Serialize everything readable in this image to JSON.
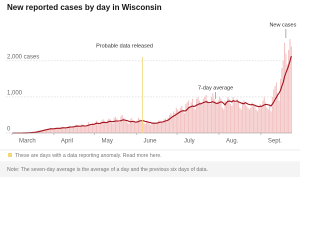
{
  "chart_data": {
    "type": "bar",
    "title": "New reported cases by day in Wisconsin",
    "categories": [
      "March",
      null,
      null,
      null,
      null,
      null,
      null,
      null,
      null,
      null,
      null,
      null,
      null,
      null,
      null,
      null,
      null,
      null,
      null,
      null,
      null,
      null,
      null,
      null,
      null,
      null,
      null,
      null,
      null,
      null,
      null,
      "April",
      null,
      null,
      null,
      null,
      null,
      null,
      null,
      null,
      null,
      null,
      null,
      null,
      null,
      null,
      null,
      null,
      null,
      null,
      null,
      null,
      null,
      null,
      null,
      null,
      null,
      null,
      null,
      null,
      null,
      "May",
      null,
      null,
      null,
      null,
      null,
      null,
      null,
      null,
      null,
      null,
      null,
      null,
      null,
      null,
      null,
      null,
      null,
      null,
      null,
      null,
      null,
      null,
      null,
      null,
      null,
      null,
      null,
      null,
      null,
      null,
      "June",
      null,
      null,
      null,
      null,
      null,
      null,
      null,
      null,
      null,
      null,
      null,
      null,
      null,
      null,
      null,
      null,
      null,
      null,
      null,
      null,
      null,
      null,
      null,
      null,
      null,
      null,
      null,
      null,
      null,
      "July",
      null,
      null,
      null,
      null,
      null,
      null,
      null,
      null,
      null,
      null,
      null,
      null,
      null,
      null,
      null,
      null,
      null,
      null,
      null,
      null,
      null,
      null,
      null,
      null,
      null,
      null,
      null,
      null,
      null,
      null,
      "Aug.",
      null,
      null,
      null,
      null,
      null,
      null,
      null,
      null,
      null,
      null,
      null,
      null,
      null,
      null,
      null,
      null,
      null,
      null,
      null,
      null,
      null,
      null,
      null,
      null,
      null,
      null,
      null,
      null,
      null,
      null,
      "Sept.",
      null,
      null,
      null,
      null,
      null,
      null,
      null,
      null,
      null,
      null,
      null,
      null,
      null,
      null,
      null,
      null,
      null,
      null,
      null,
      null,
      null,
      null
    ],
    "series": [
      {
        "name": "New cases",
        "color": "#f3c3c3",
        "values": [
          0,
          0,
          0,
          0,
          0,
          0,
          1,
          2,
          3,
          5,
          8,
          10,
          12,
          15,
          20,
          25,
          30,
          40,
          50,
          60,
          70,
          80,
          90,
          100,
          110,
          100,
          120,
          130,
          140,
          120,
          100,
          120,
          150,
          130,
          110,
          140,
          160,
          170,
          150,
          130,
          160,
          180,
          200,
          170,
          150,
          180,
          210,
          230,
          200,
          160,
          190,
          250,
          220,
          180,
          170,
          230,
          300,
          250,
          200,
          280,
          260,
          300,
          340,
          250,
          220,
          300,
          350,
          380,
          320,
          280,
          350,
          400,
          380,
          300,
          260,
          420,
          450,
          400,
          350,
          300,
          460,
          500,
          420,
          380,
          350,
          280,
          260,
          380,
          420,
          360,
          300,
          280,
          350,
          420,
          380,
          300,
          350,
          280,
          250,
          320,
          300,
          250,
          220,
          280,
          300,
          260,
          280,
          300,
          350,
          320,
          280,
          300,
          380,
          400,
          350,
          420,
          500,
          550,
          480,
          600,
          550,
          700,
          650,
          600,
          700,
          750,
          650,
          550,
          800,
          850,
          900,
          750,
          850,
          950,
          700,
          650,
          950,
          1000,
          900,
          850,
          800,
          950,
          1000,
          1050,
          900,
          850,
          800,
          1000,
          1100,
          950,
          880,
          820,
          900,
          1000,
          950,
          700,
          650,
          900,
          850,
          1000,
          950,
          800,
          750,
          1000,
          900,
          850,
          950,
          850,
          700,
          650,
          850,
          900,
          800,
          750,
          700,
          650,
          700,
          850,
          800,
          750,
          650,
          600,
          700,
          800,
          750,
          900,
          1000,
          850,
          700,
          650,
          800,
          600,
          1000,
          1200,
          1300,
          1400,
          1100,
          900,
          1500,
          1800,
          2000,
          2500,
          2200,
          1900,
          2300,
          2600,
          2400
        ]
      },
      {
        "name": "7-day average",
        "color": "#a3121c",
        "values": [
          0,
          0,
          0,
          0,
          0,
          0,
          0,
          0,
          1,
          2,
          3,
          5,
          7,
          9,
          12,
          15,
          18,
          23,
          29,
          36,
          44,
          53,
          63,
          73,
          82,
          90,
          99,
          107,
          115,
          117,
          116,
          120,
          126,
          129,
          130,
          131,
          136,
          144,
          144,
          142,
          147,
          153,
          161,
          166,
          167,
          171,
          177,
          189,
          191,
          189,
          189,
          194,
          202,
          196,
          194,
          201,
          216,
          227,
          233,
          239,
          240,
          254,
          271,
          269,
          260,
          271,
          287,
          293,
          295,
          287,
          294,
          314,
          324,
          319,
          313,
          323,
          331,
          333,
          333,
          336,
          342,
          357,
          366,
          357,
          349,
          340,
          322,
          309,
          319,
          319,
          311,
          299,
          307,
          316,
          336,
          339,
          341,
          335,
          319,
          318,
          306,
          292,
          289,
          271,
          273,
          274,
          273,
          274,
          291,
          299,
          304,
          307,
          318,
          336,
          343,
          360,
          388,
          417,
          444,
          471,
          487,
          517,
          539,
          568,
          590,
          611,
          619,
          611,
          618,
          653,
          697,
          717,
          731,
          750,
          735,
          750,
          775,
          787,
          811,
          808,
          824,
          844,
          855,
          869,
          850,
          842,
          842,
          855,
          868,
          850,
          828,
          821,
          829,
          848,
          863,
          853,
          819,
          780,
          840,
          880,
          885,
          880,
          860,
          900,
          880,
          880,
          890,
          860,
          850,
          830,
          820,
          810,
          840,
          820,
          800,
          790,
          780,
          790,
          780,
          770,
          750,
          740,
          730,
          740,
          740,
          760,
          780,
          790,
          790,
          780,
          770,
          750,
          800,
          860,
          930,
          990,
          1060,
          1110,
          1180,
          1300,
          1400,
          1560,
          1670,
          1760,
          1870,
          1990,
          2130
        ]
      }
    ],
    "ylim": [
      0,
      2800
    ],
    "yticks": [
      0,
      {
        "value": 1000,
        "label": "1,000"
      },
      {
        "value": 2000,
        "label": "2,000 cases"
      }
    ],
    "grid": true,
    "annotations": [
      "Probable data released",
      "7-day average",
      "New cases"
    ],
    "legend_note": "These are days with a data reporting anomaly. Read more here.",
    "note": "Note: The seven-day average is the average of a day and the previous six days of data."
  }
}
